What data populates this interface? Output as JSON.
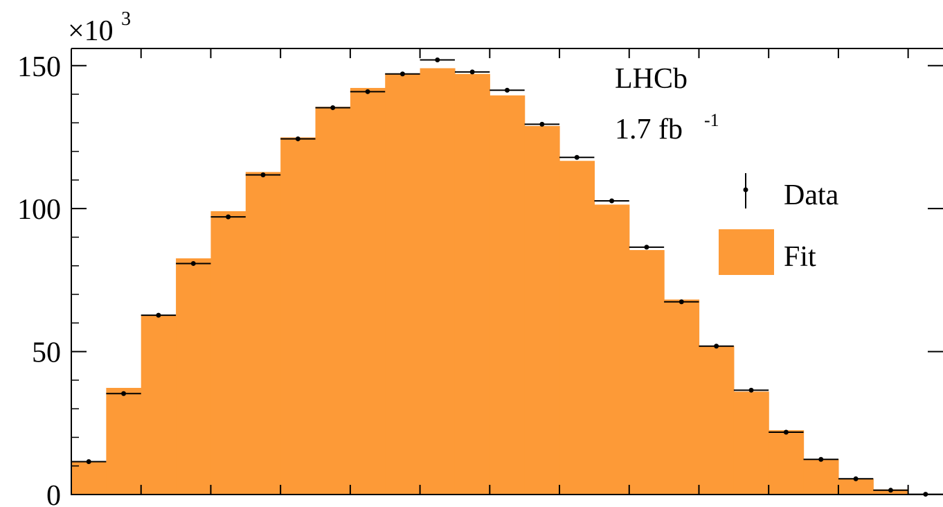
{
  "chart_data": {
    "type": "bar",
    "title": "",
    "xlabel": "",
    "ylabel": "",
    "y_multiplier_label": "×10",
    "y_multiplier_exponent": "3",
    "ylim": [
      0,
      156
    ],
    "grid": false,
    "yticks": [
      {
        "value": 0,
        "label": "0"
      },
      {
        "value": 50,
        "label": "50"
      },
      {
        "value": 100,
        "label": "100"
      },
      {
        "value": 150,
        "label": "150"
      }
    ],
    "annotations": {
      "experiment": "LHCb",
      "luminosity": "1.7 fb",
      "luminosity_exponent": "-1"
    },
    "legend": {
      "placement": "right",
      "entries": [
        {
          "label": "Data",
          "style": "points"
        },
        {
          "label": "Fit",
          "style": "filled"
        }
      ]
    },
    "colors": {
      "fit": "#fd9a37",
      "data": "#000000"
    },
    "series": [
      {
        "name": "Fit",
        "style": "histogram",
        "values": [
          11.5,
          37.3,
          62.8,
          82.6,
          99.1,
          112.8,
          124.9,
          135.6,
          142.2,
          147.3,
          149.1,
          147.1,
          139.6,
          128.9,
          116.7,
          101.4,
          85.5,
          68.2,
          52.0,
          36.0,
          22.5,
          12.4,
          5.5,
          1.8,
          0.2
        ]
      },
      {
        "name": "Data",
        "style": "points",
        "values": [
          11.5,
          35.3,
          62.7,
          80.8,
          97.1,
          111.8,
          124.4,
          135.3,
          140.9,
          147.1,
          152.0,
          147.8,
          141.4,
          129.5,
          117.9,
          102.7,
          86.5,
          67.4,
          51.9,
          36.5,
          21.8,
          12.3,
          5.5,
          1.5,
          0.1
        ]
      }
    ]
  }
}
